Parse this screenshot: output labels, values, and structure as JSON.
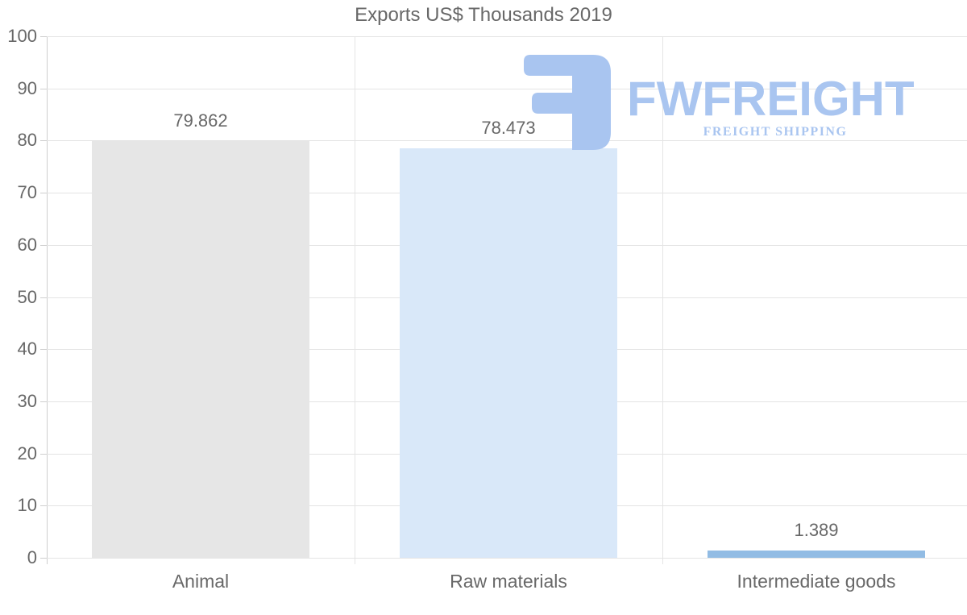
{
  "chart_data": {
    "type": "bar",
    "title": "Exports US$ Thousands 2019",
    "categories": [
      "Animal",
      "Raw materials",
      "Intermediate goods"
    ],
    "values": [
      79.862,
      78.473,
      1.389
    ],
    "value_labels": [
      "79.862",
      "78.473",
      "1.389"
    ],
    "xlabel": "",
    "ylabel": "",
    "ylim": [
      0,
      100
    ],
    "yticks": [
      0,
      10,
      20,
      30,
      40,
      50,
      60,
      70,
      80,
      90,
      100
    ],
    "grid": true,
    "legend": false,
    "bar_colors": [
      "#e6e6e6",
      "#d9e8f9",
      "#92bce4"
    ],
    "text_color": "#686868",
    "gridline_color": "#e4e4e4",
    "axis_color": "#cfcfcf"
  },
  "watermark": {
    "brand": "FWFREIGHT",
    "tagline": "FREIGHT SHIPPING",
    "color": "#a9c5f0"
  }
}
